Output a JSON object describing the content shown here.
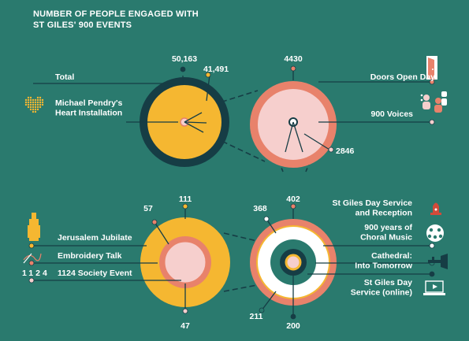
{
  "title_lines": [
    "NUMBER OF PEOPLE ENGAGED WITH",
    "ST GILES' 900 EVENTS"
  ],
  "colors": {
    "background": "#2a7a6e",
    "dark": "#163d45",
    "yellow": "#f5b731",
    "salmon": "#e8826b",
    "light_pink": "#f6cfcd",
    "line": "#163d45"
  },
  "icons": {
    "total": "",
    "heart_installation": "heart-icon",
    "doors_open_day": "door-icon",
    "nine_hundred_voices": "singers-icon",
    "jerusalem_jubilate": "organ-icon",
    "embroidery_talk": "needle-icon",
    "society_event": "1124-icon",
    "day_service": "bell-icon",
    "choral_music": "choir-icon",
    "cathedral": "trumpet-icon",
    "online": "laptop-icon"
  },
  "chart_data": {
    "type": "bubble-breakdown",
    "title": "NUMBER OF PEOPLE ENGAGED WITH ST GILES' 900 EVENTS",
    "groups": [
      {
        "group": "top-left",
        "items": [
          {
            "label": "Total",
            "value": 50163,
            "value_label": "50,163",
            "color": "#163d45"
          },
          {
            "label": "Michael Pendry's Heart Installation",
            "value": 41491,
            "value_label": "41,491",
            "color": "#f5b731"
          }
        ]
      },
      {
        "group": "top-right",
        "items": [
          {
            "label": "Doors Open Day",
            "value": 4430,
            "value_label": "4430",
            "color": "#e8826b"
          },
          {
            "label": "900 Voices",
            "value": 2846,
            "value_label": "2846",
            "color": "#f6cfcd"
          }
        ]
      },
      {
        "group": "bottom-left",
        "items": [
          {
            "label": "Jerusalem Jubilate",
            "value": 111,
            "value_label": "111",
            "color": "#f5b731"
          },
          {
            "label": "Embroidery Talk",
            "value": 57,
            "value_label": "57",
            "color": "#e8826b"
          },
          {
            "label": "1124 Society Event",
            "value": 47,
            "value_label": "47",
            "color": "#f6cfcd"
          }
        ]
      },
      {
        "group": "bottom-right",
        "items": [
          {
            "label": "St Giles Day Service and Reception",
            "value": 402,
            "value_label": "402",
            "color": "#e8826b"
          },
          {
            "label": "900 years of Choral Music",
            "value": 368,
            "value_label": "368",
            "color": "#ffffff"
          },
          {
            "label": "Cathedral: Into Tomorrow",
            "value": 211,
            "value_label": "211",
            "color": "#2a7a6e"
          },
          {
            "label": "St Giles Day Service (online)",
            "value": 200,
            "value_label": "200",
            "color": "#163d45"
          }
        ]
      }
    ],
    "label_lines": {
      "Michael Pendry's Heart Installation": [
        "Michael Pendry's",
        "Heart Installation"
      ],
      "St Giles Day Service and Reception": [
        "St Giles Day Service",
        "and Reception"
      ],
      "900 years of Choral Music": [
        "900 years of",
        "Choral Music"
      ],
      "Cathedral: Into Tomorrow": [
        "Cathedral:",
        "Into Tomorrow"
      ],
      "St Giles Day Service (online)": [
        "St Giles Day",
        "Service (online)"
      ]
    }
  }
}
